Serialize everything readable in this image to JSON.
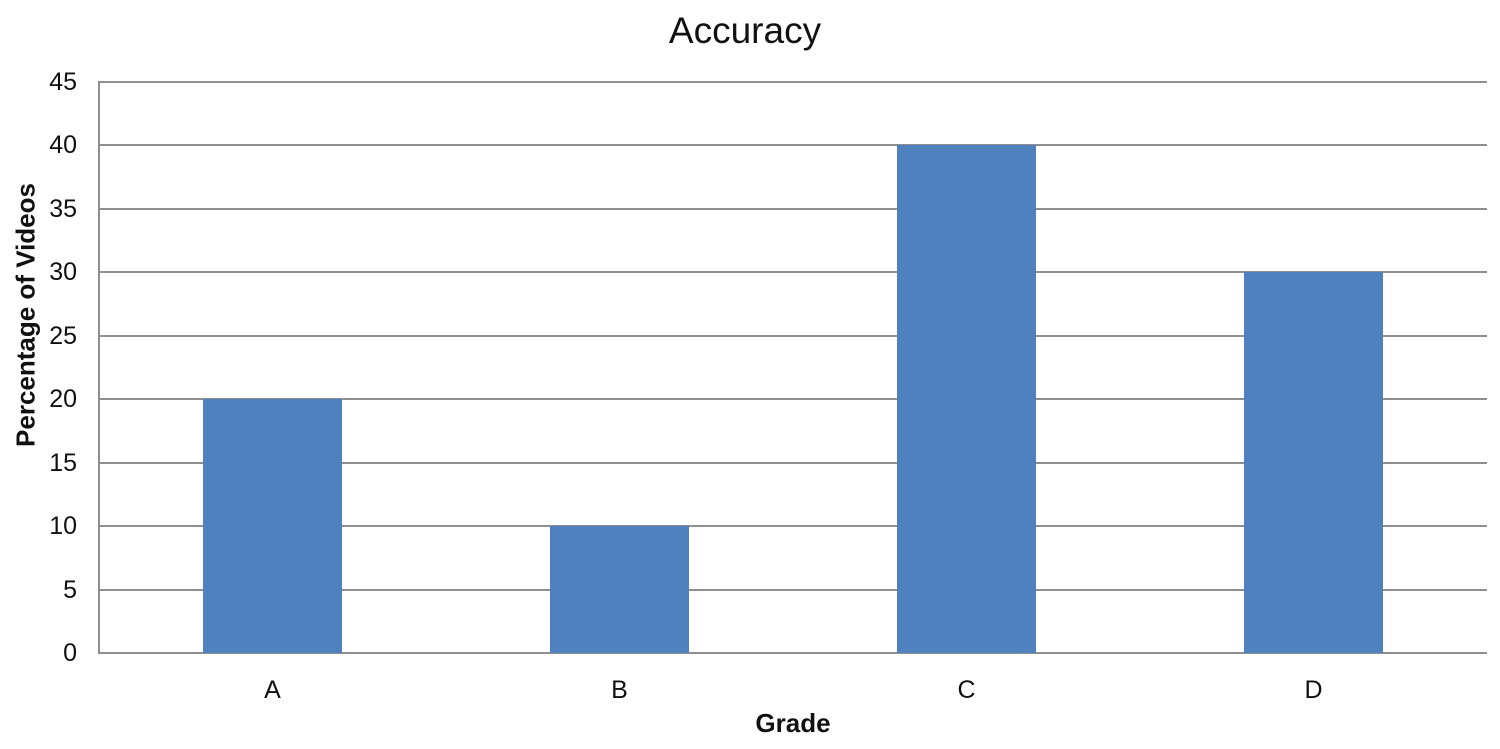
{
  "chart_data": {
    "type": "bar",
    "title": "Accuracy",
    "categories": [
      "A",
      "B",
      "C",
      "D"
    ],
    "values": [
      20,
      10,
      40,
      30
    ],
    "xlabel": "Grade",
    "ylabel": "Percentage of Videos",
    "ylim": [
      0,
      45
    ],
    "yticks": [
      45,
      40,
      35,
      30,
      25,
      20,
      15,
      10,
      5,
      0
    ],
    "grid": "horizontal-only",
    "legend": "none",
    "bar_color": "#4E81BD",
    "gridline_color": "#8F8F8F",
    "axis_line_color": "#8F8F8F",
    "text_color": "#111111"
  }
}
